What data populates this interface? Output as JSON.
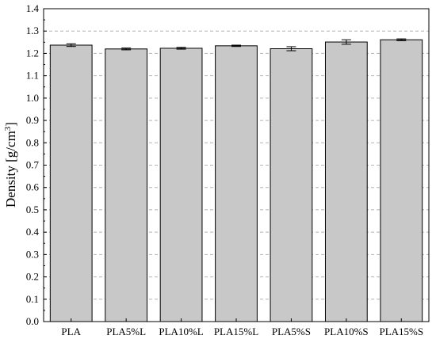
{
  "chart_data": {
    "type": "bar",
    "categories": [
      "PLA",
      "PLA5%L",
      "PLA10%L",
      "PLA15%L",
      "PLA5%S",
      "PLA10%S",
      "PLA15%S"
    ],
    "values": [
      1.237,
      1.22,
      1.223,
      1.234,
      1.221,
      1.251,
      1.261
    ],
    "errors": [
      0.006,
      0.004,
      0.004,
      0.003,
      0.009,
      0.01,
      0.004
    ],
    "title": "",
    "xlabel": "",
    "ylabel_main": "Density [g/cm",
    "ylabel_sup": "3",
    "ylabel_end": "]",
    "ylim": [
      0.0,
      1.4
    ],
    "yticks": [
      "0.0",
      "0.1",
      "0.2",
      "0.3",
      "0.4",
      "0.5",
      "0.6",
      "0.7",
      "0.8",
      "0.9",
      "1.0",
      "1.1",
      "1.2",
      "1.3",
      "1.4"
    ],
    "grid": "horizontal-dashed",
    "legend": "none",
    "colors": {
      "bar_fill": "#c8c8c8",
      "bar_stroke": "#000000",
      "grid": "#b4b4b4",
      "axis": "#000000"
    }
  }
}
